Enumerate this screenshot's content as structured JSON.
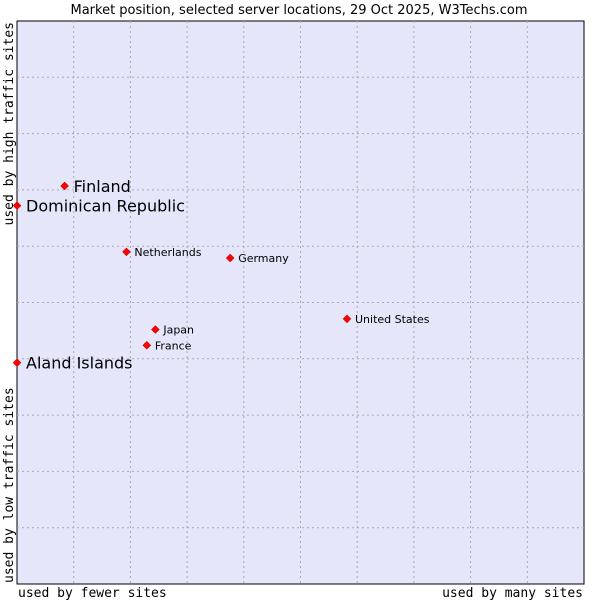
{
  "chart_data": {
    "type": "scatter",
    "title": "Market position, selected server locations, 29 Oct 2025, W3Techs.com",
    "xlabel_left": "used by fewer sites",
    "xlabel_right": "used by many sites",
    "ylabel_top": "used by high traffic sites",
    "ylabel_bottom": "used by low traffic sites",
    "xlim": [
      0,
      10
    ],
    "ylim": [
      0,
      10
    ],
    "grid": true,
    "points": [
      {
        "name": "Finland",
        "x": 0.84,
        "y": 7.07,
        "highlight": true
      },
      {
        "name": "Dominican Republic",
        "x": 0.0,
        "y": 6.72,
        "highlight": true
      },
      {
        "name": "Aland Islands",
        "x": 0.0,
        "y": 3.93,
        "highlight": true
      },
      {
        "name": "Netherlands",
        "x": 1.93,
        "y": 5.9,
        "highlight": false
      },
      {
        "name": "Germany",
        "x": 3.76,
        "y": 5.79,
        "highlight": false
      },
      {
        "name": "United States",
        "x": 5.82,
        "y": 4.71,
        "highlight": false
      },
      {
        "name": "Japan",
        "x": 2.44,
        "y": 4.52,
        "highlight": false
      },
      {
        "name": "France",
        "x": 2.29,
        "y": 4.24,
        "highlight": false
      }
    ]
  },
  "colors": {
    "plot_bg": "#e6e6fa",
    "marker": "#ff0000",
    "grid": "#aaaaaa"
  }
}
